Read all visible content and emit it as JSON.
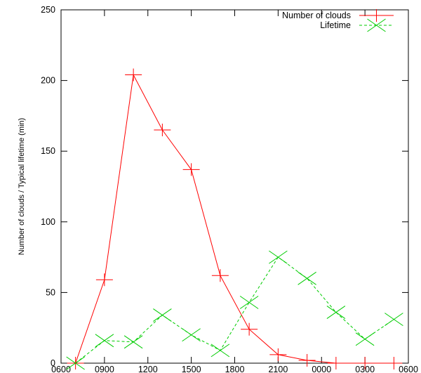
{
  "chart_data": {
    "type": "line",
    "ylabel": "Number of clouds / Typical lifetime (min)",
    "x_tick_labels": [
      "0600",
      "0900",
      "1200",
      "1500",
      "1800",
      "2100",
      "0000",
      "0300",
      "0600"
    ],
    "xlim": [
      0,
      24
    ],
    "ylim": [
      0,
      250
    ],
    "y_ticks": [
      0,
      50,
      100,
      150,
      200,
      250
    ],
    "legend_position": "top-right",
    "grid": false,
    "series": [
      {
        "name": "Number of clouds",
        "color": "#ff0000",
        "line_style": "solid",
        "marker": "plus",
        "x": [
          1.0,
          3.0,
          5.0,
          7.0,
          9.0,
          11.0,
          13.0,
          15.0,
          17.0,
          19.0,
          21.0,
          23.0
        ],
        "y": [
          0,
          59,
          204,
          165,
          137,
          62,
          24,
          6,
          2,
          0,
          0,
          0
        ]
      },
      {
        "name": "Lifetime",
        "color": "#00cc00",
        "line_style": "dashed",
        "marker": "cross",
        "x": [
          1.0,
          3.0,
          5.0,
          7.0,
          9.0,
          11.0,
          13.0,
          15.0,
          17.0,
          19.0,
          21.0,
          23.0
        ],
        "y": [
          0,
          16,
          15,
          34,
          20,
          9,
          43,
          75,
          60,
          36,
          17,
          31
        ]
      }
    ]
  }
}
